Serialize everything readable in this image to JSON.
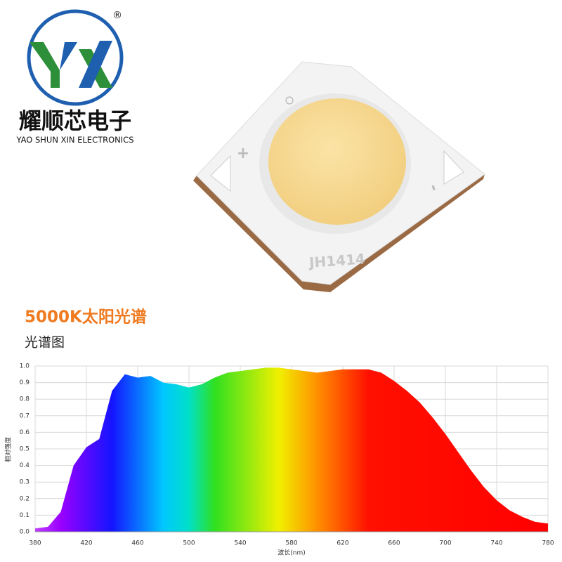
{
  "brand": {
    "name_cn": "耀顺芯电子",
    "name_en": "YAO SHUN XIN ELECTRONICS",
    "mark": "®"
  },
  "product": {
    "model": "JH1414",
    "plus": "+",
    "minus": "-"
  },
  "chart_data": {
    "type": "area",
    "title": "5000K太阳光谱",
    "subtitle": "光谱图",
    "x_label": "波长(nm)",
    "y_label": "相对强度",
    "x": [
      380,
      390,
      400,
      410,
      420,
      430,
      440,
      450,
      460,
      470,
      480,
      490,
      500,
      510,
      520,
      530,
      540,
      550,
      560,
      570,
      580,
      590,
      600,
      610,
      620,
      630,
      640,
      650,
      660,
      670,
      680,
      690,
      700,
      710,
      720,
      730,
      740,
      750,
      760,
      770,
      780
    ],
    "values": [
      0.02,
      0.03,
      0.12,
      0.4,
      0.51,
      0.56,
      0.85,
      0.95,
      0.93,
      0.94,
      0.9,
      0.89,
      0.87,
      0.89,
      0.93,
      0.96,
      0.97,
      0.98,
      0.99,
      0.99,
      0.98,
      0.97,
      0.96,
      0.97,
      0.98,
      0.98,
      0.98,
      0.96,
      0.91,
      0.85,
      0.78,
      0.69,
      0.59,
      0.48,
      0.37,
      0.27,
      0.19,
      0.13,
      0.09,
      0.06,
      0.05
    ],
    "xlim": [
      380,
      780
    ],
    "xticks": [
      380,
      420,
      460,
      500,
      540,
      580,
      620,
      660,
      700,
      740,
      780
    ],
    "ylim": [
      0,
      1
    ],
    "yticks": [
      {
        "value": 0,
        "label": "0.0"
      },
      0.1,
      0.2,
      0.3,
      0.4,
      0.5,
      0.6,
      0.7,
      0.8,
      0.9,
      {
        "value": 1,
        "label": "1.0"
      }
    ],
    "grid": true
  }
}
